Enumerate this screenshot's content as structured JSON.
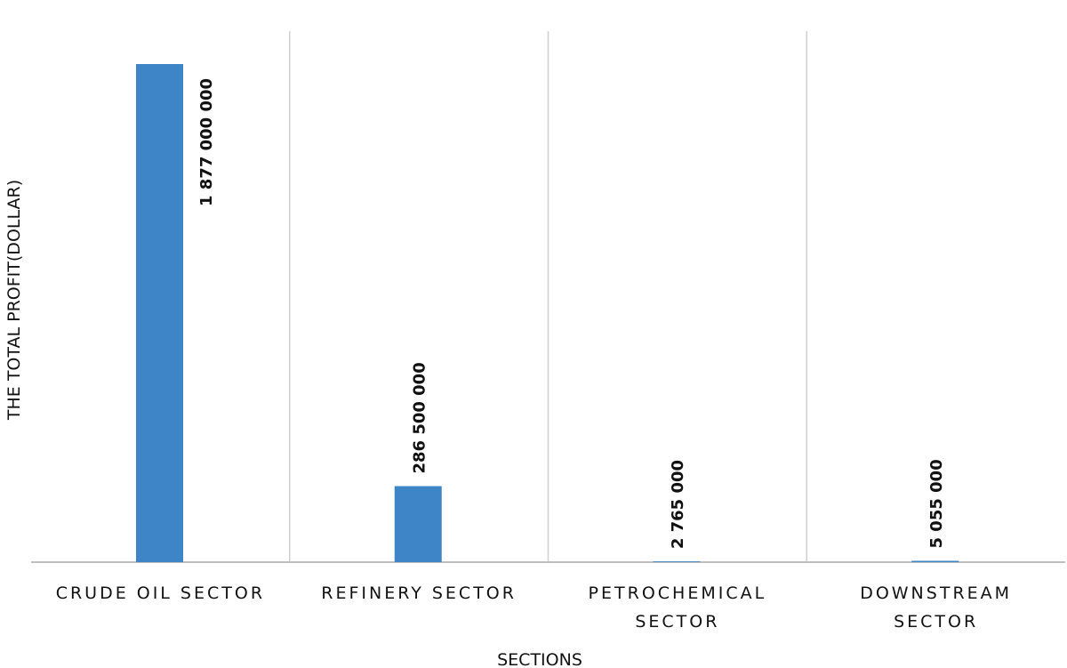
{
  "chart_data": {
    "type": "bar",
    "categories": [
      [
        "CRUDE OIL SECTOR"
      ],
      [
        "REFINERY SECTOR"
      ],
      [
        "PETROCHEMICAL",
        "SECTOR"
      ],
      [
        "DOWNSTREAM",
        "SECTOR"
      ]
    ],
    "values": [
      1877000000,
      286500000,
      2765000,
      5055000
    ],
    "value_labels": [
      "1 877 000 000",
      "286 500 000",
      "2 765 000",
      "5 055 000"
    ],
    "title": "",
    "xlabel": "SECTIONS",
    "ylabel": "THE TOTAL PROFIT(DOLLAR)",
    "ylim": [
      0,
      1877000000
    ],
    "grid": "vertical category separators",
    "legend": "none",
    "colors": {
      "bar": "#3d85c6",
      "separator": "#d0d0d0",
      "axis": "#bfbfbf"
    }
  }
}
